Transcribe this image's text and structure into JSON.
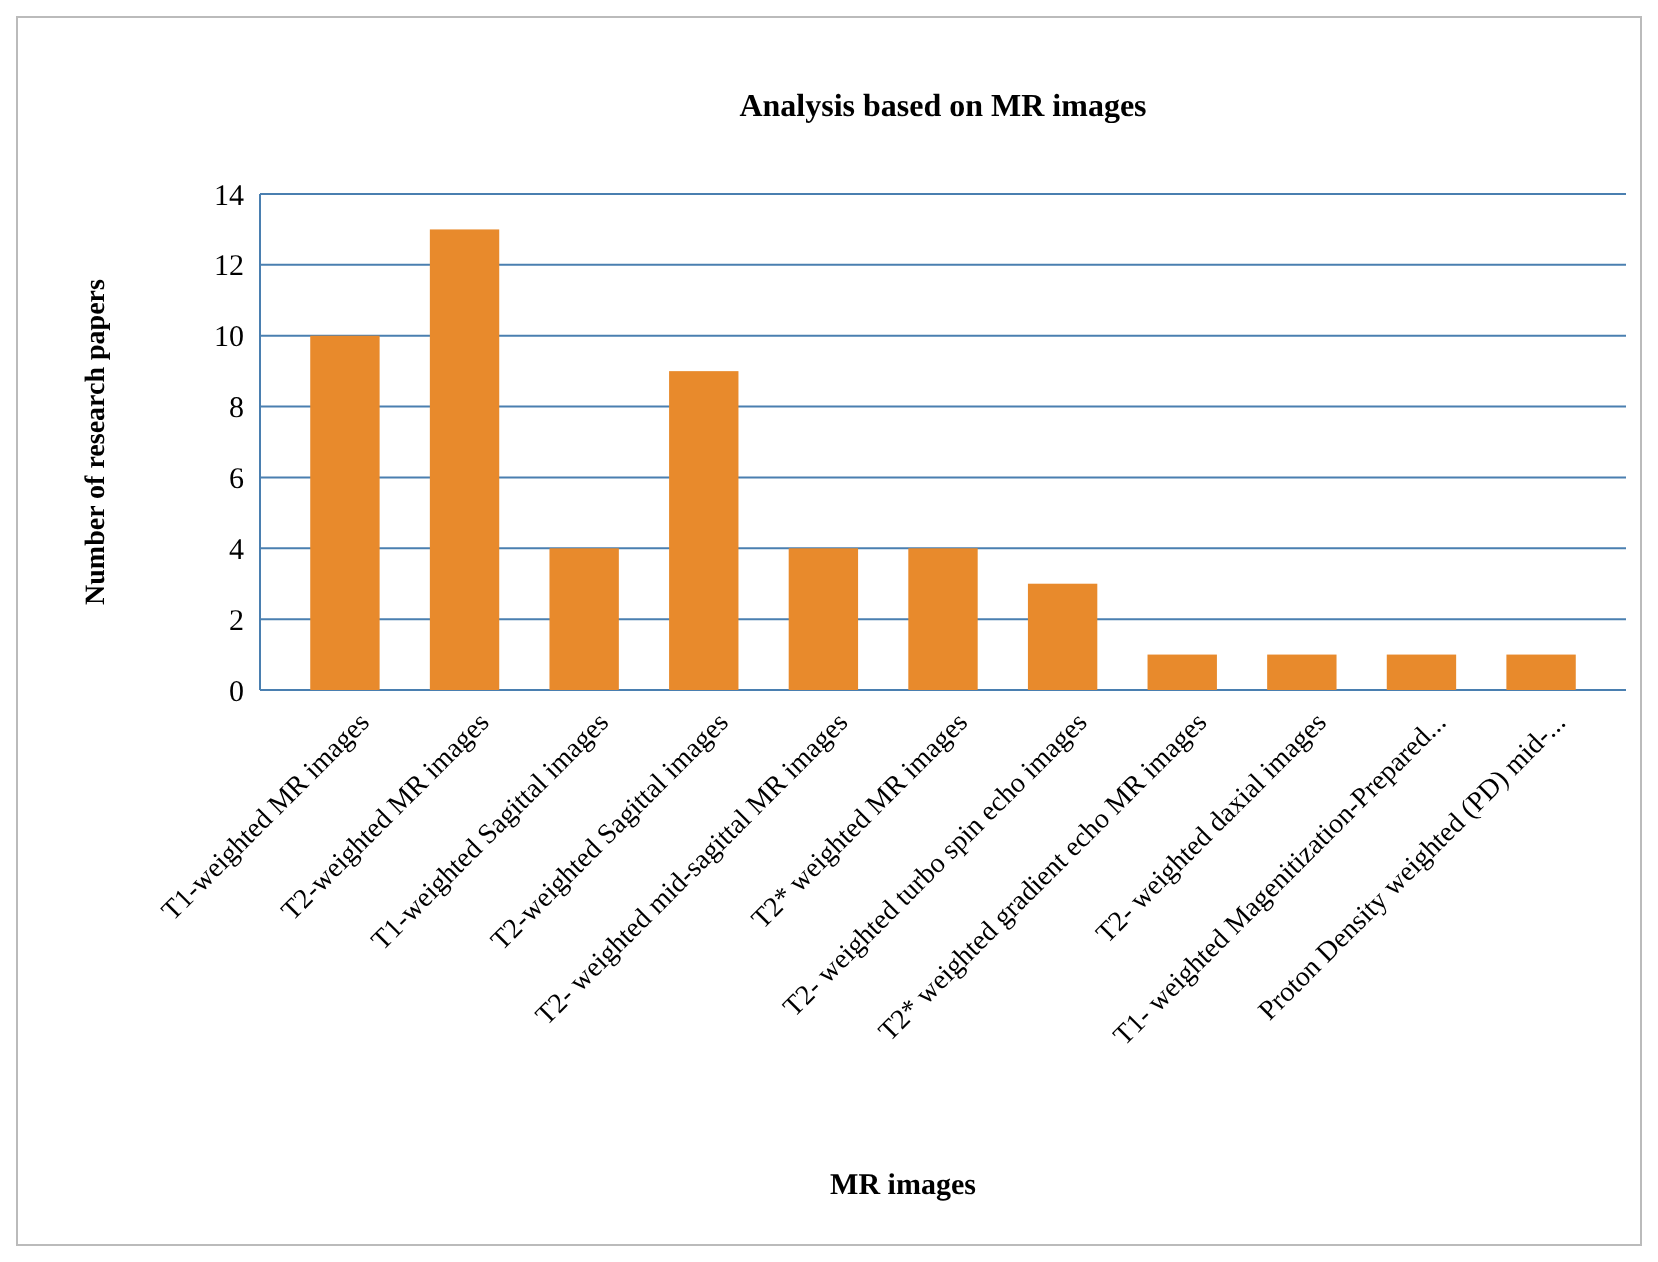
{
  "chart_data": {
    "type": "bar",
    "title": "Analysis based on MR images",
    "xlabel": "MR images",
    "ylabel": "Number of research papers",
    "categories": [
      "T1-weighted MR images",
      "T2-weighted MR images",
      "T1-weighted Sagittal images",
      "T2-weighted Sagittal images",
      "T2- weighted mid-sagittal MR images",
      "T2* weighted MR images",
      "T2- weighted turbo spin echo images",
      "T2* weighted gradient echo MR images",
      "T2- weighted daxial images",
      "T1- weighted Magenitization-Prepared...",
      "Proton Density weighted (PD) mid-..."
    ],
    "values": [
      10,
      13,
      4,
      9,
      4,
      4,
      3,
      1,
      1,
      1,
      1
    ],
    "color": "#e88a2c",
    "ylim": [
      0,
      14
    ],
    "yticks": [
      0,
      2,
      4,
      6,
      8,
      10,
      12,
      14
    ],
    "grid": "y"
  }
}
